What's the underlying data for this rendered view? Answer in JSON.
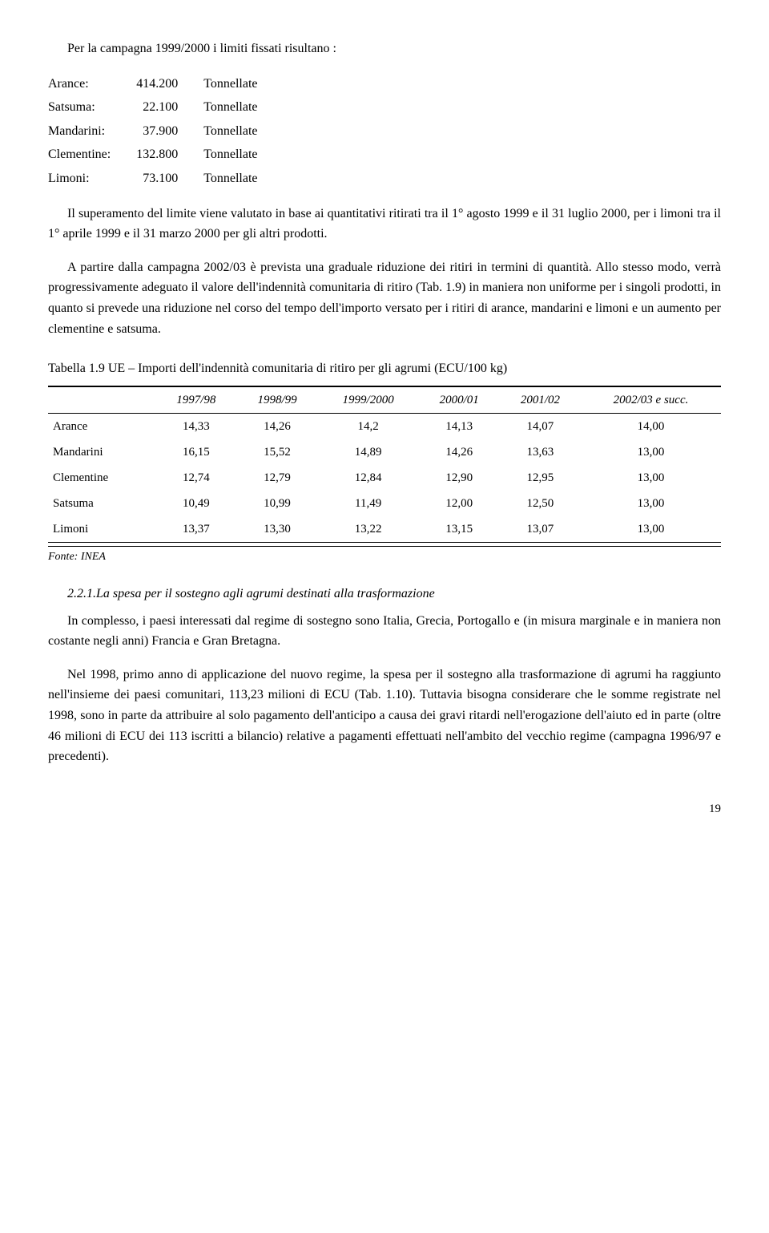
{
  "intro_line": "Per la campagna 1999/2000 i limiti fissati risultano :",
  "limits": {
    "rows": [
      {
        "label": "Arance:",
        "value": "414.200",
        "unit": "Tonnellate"
      },
      {
        "label": "Satsuma:",
        "value": "22.100",
        "unit": "Tonnellate"
      },
      {
        "label": "Mandarini:",
        "value": "37.900",
        "unit": "Tonnellate"
      },
      {
        "label": "Clementine:",
        "value": "132.800",
        "unit": "Tonnellate"
      },
      {
        "label": "Limoni:",
        "value": "73.100",
        "unit": "Tonnellate"
      }
    ]
  },
  "body_p1": "Il superamento del limite viene valutato in base ai quantitativi ritirati tra il 1° agosto 1999 e il 31 luglio 2000, per i limoni tra il 1° aprile 1999 e il 31 marzo 2000 per gli altri prodotti.",
  "body_p2": "A partire dalla campagna 2002/03 è prevista una graduale riduzione dei ritiri in termini di quantità. Allo stesso modo, verrà progressivamente adeguato il valore dell'indennità comunitaria di ritiro (Tab. 1.9) in maniera non  uniforme per i singoli prodotti, in quanto si prevede una riduzione nel corso del tempo dell'importo versato per i ritiri di arance, mandarini e limoni e un aumento per clementine e satsuma.",
  "table19": {
    "caption": "Tabella 1.9  UE – Importi dell'indennità comunitaria di ritiro per gli agrumi (ECU/100 kg)",
    "columns": [
      "",
      "1997/98",
      "1998/99",
      "1999/2000",
      "2000/01",
      "2001/02",
      "2002/03 e succ."
    ],
    "rows": [
      {
        "label": "Arance",
        "cells": [
          "14,33",
          "14,26",
          "14,2",
          "14,13",
          "14,07",
          "14,00"
        ]
      },
      {
        "label": "Mandarini",
        "cells": [
          "16,15",
          "15,52",
          "14,89",
          "14,26",
          "13,63",
          "13,00"
        ]
      },
      {
        "label": "Clementine",
        "cells": [
          "12,74",
          "12,79",
          "12,84",
          "12,90",
          "12,95",
          "13,00"
        ]
      },
      {
        "label": "Satsuma",
        "cells": [
          "10,49",
          "10,99",
          "11,49",
          "12,00",
          "12,50",
          "13,00"
        ]
      },
      {
        "label": "Limoni",
        "cells": [
          "13,37",
          "13,30",
          "13,22",
          "13,15",
          "13,07",
          "13,00"
        ]
      }
    ],
    "source": "Fonte: INEA"
  },
  "subsection": {
    "title": "2.2.1.La spesa per il sostegno agli agrumi destinati alla trasformazione",
    "p1": "In complesso, i paesi interessati dal regime di sostegno sono Italia, Grecia, Portogallo e (in misura marginale e in maniera non costante negli anni) Francia e Gran Bretagna.",
    "p2": "Nel 1998, primo anno di applicazione del nuovo regime, la spesa per il sostegno alla trasformazione di agrumi ha raggiunto nell'insieme dei paesi comunitari, 113,23 milioni di ECU (Tab. 1.10). Tuttavia bisogna considerare che le somme registrate nel 1998, sono in parte da attribuire al solo pagamento dell'anticipo a causa dei gravi ritardi nell'erogazione dell'aiuto ed in parte (oltre 46 milioni di ECU dei 113 iscritti a bilancio) relative a pagamenti effettuati nell'ambito del vecchio regime (campagna 1996/97 e precedenti)."
  },
  "page_number": "19"
}
